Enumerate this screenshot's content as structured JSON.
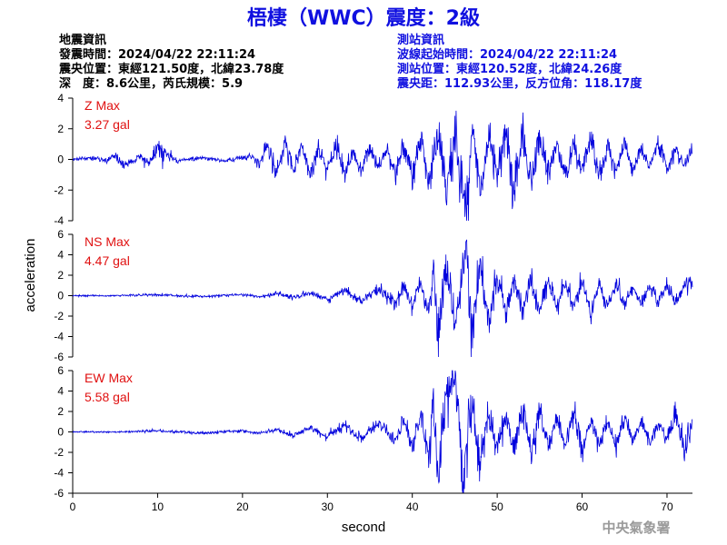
{
  "title": "梧棲（WWC）震度：2級",
  "quake_info": {
    "heading": "地震資訊",
    "origin_time": "發震時間：2024/04/22 22:11:24",
    "epicenter": "震央位置：東經121.50度，北緯23.78度",
    "depth_magnitude": "深　度：8.6公里，芮氏規模：5.9"
  },
  "station_info": {
    "heading": "測站資訊",
    "wave_start": "波線起始時間：2024/04/22 22:11:24",
    "location": "測站位置：東經120.52度，北緯24.26度",
    "distance": "震央距：112.93公里，反方位角：118.17度"
  },
  "watermark": "中央氣象署",
  "colors": {
    "title": "#1010e0",
    "trace": "#0000dd",
    "max_label": "#e01010"
  },
  "chart_data": {
    "type": "line",
    "xlabel": "second",
    "ylabel": "acceleration",
    "xlim": [
      0,
      73
    ],
    "xticks": [
      0,
      10,
      20,
      30,
      40,
      50,
      60,
      70
    ],
    "panels": [
      {
        "name": "Z",
        "max_title": "Z Max",
        "max_value": "3.27 gal",
        "ylim": [
          -4,
          4
        ],
        "yticks": [
          -4,
          -2,
          0,
          2,
          4
        ],
        "x": [
          0,
          2,
          4,
          5,
          6,
          8,
          9,
          10,
          12,
          15,
          18,
          21,
          22,
          23,
          24,
          25,
          26,
          27,
          28,
          29,
          30,
          31,
          32,
          33,
          34,
          35,
          36,
          37,
          38,
          39,
          40,
          41,
          42,
          43,
          44,
          45,
          46,
          46.5,
          47,
          48,
          49,
          50,
          51,
          52,
          53,
          54,
          55,
          56,
          57,
          58,
          59,
          60,
          61,
          62,
          63,
          64,
          65,
          66,
          67,
          68,
          69,
          70,
          71,
          72,
          73
        ],
        "values": [
          0,
          0.1,
          -0.1,
          0.3,
          -0.4,
          0.2,
          -0.3,
          1.0,
          -0.1,
          0.1,
          -0.1,
          0.2,
          -0.3,
          0.9,
          -1.0,
          1.1,
          -0.8,
          0.9,
          -1.0,
          0.7,
          -0.8,
          0.9,
          -0.9,
          0.6,
          -0.7,
          0.8,
          -0.6,
          0.7,
          -0.9,
          1.0,
          -1.2,
          1.3,
          -1.5,
          1.7,
          -2.0,
          2.0,
          -2.3,
          -3.27,
          2.2,
          -2.0,
          1.5,
          -1.5,
          2.0,
          -2.5,
          1.8,
          -1.4,
          1.6,
          -1.2,
          1.1,
          -1.3,
          1.0,
          -0.8,
          1.2,
          -1.0,
          0.8,
          -0.7,
          1.0,
          -0.6,
          0.8,
          -0.5,
          1.2,
          -0.6,
          0.7,
          -0.3,
          0.6
        ]
      },
      {
        "name": "NS",
        "max_title": "NS Max",
        "max_value": "4.47 gal",
        "ylim": [
          -6,
          6
        ],
        "yticks": [
          -6,
          -4,
          -2,
          0,
          2,
          4,
          6
        ],
        "x": [
          0,
          5,
          10,
          15,
          20,
          22,
          24,
          26,
          28,
          30,
          32,
          34,
          36,
          38,
          39,
          40,
          41,
          42,
          42.5,
          43,
          44,
          45,
          46,
          46.5,
          47,
          48,
          49,
          50,
          51,
          52,
          53,
          54,
          55,
          56,
          57,
          58,
          59,
          60,
          61,
          62,
          63,
          64,
          65,
          66,
          67,
          68,
          69,
          70,
          71,
          72,
          73
        ],
        "values": [
          0,
          0,
          0.1,
          -0.1,
          0.1,
          -0.1,
          0.2,
          -0.2,
          0.3,
          -0.4,
          0.5,
          -0.5,
          0.7,
          -0.8,
          1.0,
          -1.2,
          1.5,
          -2.0,
          2.6,
          -4.47,
          3.0,
          -3.0,
          2.5,
          3.8,
          -3.6,
          2.8,
          -2.6,
          2.2,
          -2.0,
          1.8,
          -1.6,
          2.0,
          -1.5,
          1.4,
          -1.2,
          1.2,
          -1.0,
          1.3,
          -1.5,
          1.0,
          -1.0,
          1.4,
          -1.1,
          0.8,
          -0.8,
          0.9,
          -0.7,
          1.1,
          -0.8,
          0.9,
          1.5
        ]
      },
      {
        "name": "EW",
        "max_title": "EW Max",
        "max_value": "5.58 gal",
        "ylim": [
          -6,
          6
        ],
        "yticks": [
          -6,
          -4,
          -2,
          0,
          2,
          4,
          6
        ],
        "x": [
          0,
          5,
          10,
          15,
          20,
          22,
          24,
          26,
          28,
          30,
          32,
          34,
          36,
          38,
          39,
          40,
          41,
          42,
          42.5,
          43,
          44,
          45,
          46,
          47,
          48,
          49,
          50,
          51,
          52,
          53,
          54,
          55,
          56,
          57,
          58,
          59,
          60,
          61,
          62,
          63,
          64,
          65,
          66,
          67,
          68,
          69,
          70,
          71,
          72,
          73
        ],
        "values": [
          0,
          0,
          0.1,
          -0.1,
          0.1,
          -0.1,
          0.2,
          -0.3,
          0.4,
          -0.5,
          0.6,
          -0.6,
          0.8,
          -1.0,
          1.2,
          -1.5,
          1.8,
          -2.5,
          3.2,
          -5.4,
          4.0,
          5.58,
          -4.5,
          3.5,
          -3.0,
          2.8,
          -2.2,
          2.0,
          -1.8,
          2.5,
          -2.3,
          2.0,
          -1.6,
          1.4,
          -1.5,
          2.2,
          -1.8,
          1.3,
          -1.2,
          1.0,
          -1.1,
          1.3,
          -0.9,
          0.8,
          -1.0,
          0.9,
          -0.7,
          2.0,
          -2.5,
          1.2
        ]
      }
    ]
  }
}
